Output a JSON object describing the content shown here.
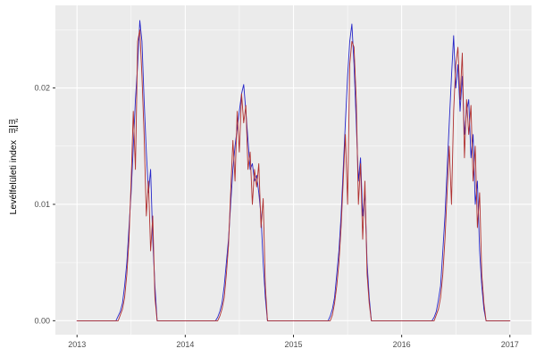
{
  "figure": {
    "background": "#FFFFFF",
    "panel_background": "#EBEBEB",
    "grid_major_color": "#FFFFFF",
    "grid_minor_color": "#FFFFFF",
    "tick_mark_color": "#333333",
    "tick_label_color": "#4D4D4D",
    "axis_title_color": "#000000"
  },
  "chart_data": {
    "type": "line",
    "title": "",
    "xlabel": "",
    "ylabel": "Levélfelületi index m²/m²",
    "ylabel_parts": {
      "text": "Levélfelületi index",
      "fraction_numerator": "m²",
      "fraction_denominator": "m²"
    },
    "legend": "none",
    "grid": true,
    "x_axis": {
      "ticks": [
        2013,
        2014,
        2015,
        2016,
        2017
      ],
      "tick_labels": [
        "2013",
        "2014",
        "2015",
        "2016",
        "2017"
      ],
      "minor_ticks": [
        2013.5,
        2014.5,
        2015.5,
        2016.5
      ],
      "range": [
        2012.8,
        2017.2
      ]
    },
    "y_axis": {
      "ticks": [
        0.0,
        0.01,
        0.02
      ],
      "tick_labels": [
        "0.00",
        "0.01",
        "0.02"
      ],
      "minor_ticks": [
        0.005,
        0.015,
        0.025
      ],
      "range": [
        -0.0012,
        0.0271
      ]
    },
    "x_start": 2013.0,
    "x_step": 0.02,
    "series": [
      {
        "name": "series-blue-line",
        "color": "#2626C9",
        "values": [
          0,
          0,
          0,
          0,
          0,
          0,
          0,
          0,
          0,
          0,
          0,
          0,
          0,
          0,
          0,
          0,
          0,
          0,
          0,
          0.0004,
          0.0008,
          0.0015,
          0.003,
          0.005,
          0.008,
          0.011,
          0.015,
          0.019,
          0.022,
          0.0258,
          0.024,
          0.019,
          0.0145,
          0.011,
          0.013,
          0.007,
          0.003,
          0,
          0,
          0,
          0,
          0,
          0,
          0,
          0,
          0,
          0,
          0,
          0,
          0,
          0,
          0,
          0,
          0,
          0,
          0,
          0,
          0,
          0,
          0,
          0,
          0,
          0,
          0,
          0,
          0.0003,
          0.0008,
          0.0015,
          0.003,
          0.005,
          0.007,
          0.01,
          0.013,
          0.015,
          0.0165,
          0.018,
          0.0195,
          0.0203,
          0.018,
          0.0155,
          0.013,
          0.0135,
          0.012,
          0.0125,
          0.011,
          0.009,
          0.005,
          0.002,
          0,
          0,
          0,
          0,
          0,
          0,
          0,
          0,
          0,
          0,
          0,
          0,
          0,
          0,
          0,
          0,
          0,
          0,
          0,
          0,
          0,
          0,
          0,
          0,
          0,
          0,
          0,
          0,
          0,
          0.0004,
          0.001,
          0.002,
          0.004,
          0.006,
          0.009,
          0.013,
          0.017,
          0.021,
          0.024,
          0.0255,
          0.022,
          0.017,
          0.012,
          0.014,
          0.009,
          0.011,
          0.005,
          0.002,
          0,
          0,
          0,
          0,
          0,
          0,
          0,
          0,
          0,
          0,
          0,
          0,
          0,
          0,
          0,
          0,
          0,
          0,
          0,
          0,
          0,
          0,
          0,
          0,
          0,
          0,
          0,
          0,
          0,
          0.0003,
          0.0008,
          0.0018,
          0.003,
          0.006,
          0.009,
          0.013,
          0.017,
          0.021,
          0.0245,
          0.02,
          0.022,
          0.018,
          0.021,
          0.016,
          0.018,
          0.019,
          0.014,
          0.016,
          0.01,
          0.012,
          0.006,
          0.003,
          0.001,
          0,
          0,
          0,
          0,
          0,
          0,
          0,
          0,
          0,
          0,
          0,
          0
        ]
      },
      {
        "name": "series-red-line",
        "color": "#B03030",
        "values": [
          0,
          0,
          0,
          0,
          0,
          0,
          0,
          0,
          0,
          0,
          0,
          0,
          0,
          0,
          0,
          0,
          0,
          0,
          0,
          0,
          0.0005,
          0.001,
          0.002,
          0.004,
          0.007,
          0.012,
          0.018,
          0.013,
          0.024,
          0.025,
          0.021,
          0.016,
          0.009,
          0.012,
          0.006,
          0.009,
          0.002,
          0,
          0,
          0,
          0,
          0,
          0,
          0,
          0,
          0,
          0,
          0,
          0,
          0,
          0,
          0,
          0,
          0,
          0,
          0,
          0,
          0,
          0,
          0,
          0,
          0,
          0,
          0,
          0,
          0,
          0.0004,
          0.001,
          0.002,
          0.004,
          0.0065,
          0.011,
          0.0155,
          0.012,
          0.018,
          0.0145,
          0.0195,
          0.017,
          0.0185,
          0.013,
          0.0145,
          0.01,
          0.013,
          0.0115,
          0.0135,
          0.008,
          0.0105,
          0.003,
          0,
          0,
          0,
          0,
          0,
          0,
          0,
          0,
          0,
          0,
          0,
          0,
          0,
          0,
          0,
          0,
          0,
          0,
          0,
          0,
          0,
          0,
          0,
          0,
          0,
          0,
          0,
          0,
          0,
          0,
          0.0005,
          0.0015,
          0.003,
          0.005,
          0.008,
          0.012,
          0.016,
          0.01,
          0.022,
          0.024,
          0.0235,
          0.019,
          0.01,
          0.0135,
          0.007,
          0.012,
          0.004,
          0.0015,
          0,
          0,
          0,
          0,
          0,
          0,
          0,
          0,
          0,
          0,
          0,
          0,
          0,
          0,
          0,
          0,
          0,
          0,
          0,
          0,
          0,
          0,
          0,
          0,
          0,
          0,
          0,
          0,
          0,
          0,
          0.0005,
          0.001,
          0.002,
          0.004,
          0.007,
          0.011,
          0.015,
          0.01,
          0.018,
          0.022,
          0.0235,
          0.019,
          0.023,
          0.014,
          0.019,
          0.016,
          0.0185,
          0.012,
          0.015,
          0.008,
          0.011,
          0.004,
          0.0015,
          0,
          0,
          0,
          0,
          0,
          0,
          0,
          0,
          0,
          0,
          0,
          0
        ]
      }
    ]
  }
}
